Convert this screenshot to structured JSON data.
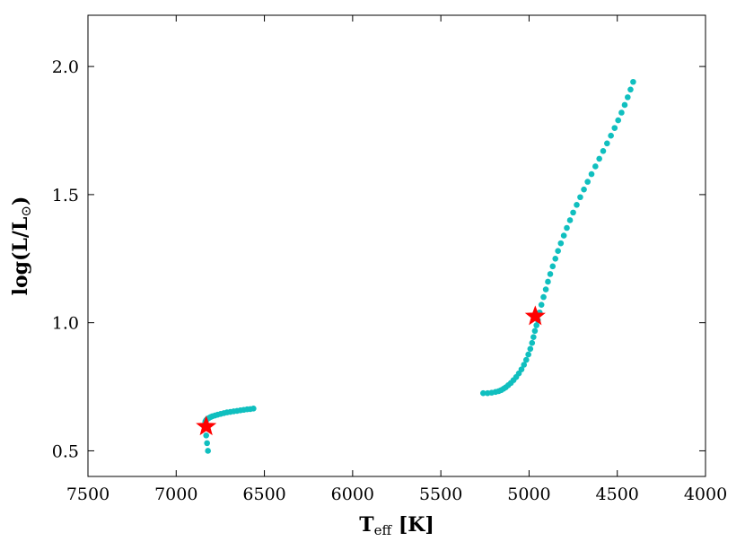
{
  "chart_data": {
    "type": "scatter",
    "title": "",
    "xlabel": {
      "main": "T",
      "sub": "eff",
      "rest": " [K]"
    },
    "ylabel": {
      "main": "log(L/L",
      "sub": "⊙",
      "rest": ")"
    },
    "xlim": [
      7500,
      4000
    ],
    "ylim": [
      0.4,
      2.2
    ],
    "x_ticks": [
      7500,
      7000,
      6500,
      6000,
      5500,
      5000,
      4500,
      4000
    ],
    "y_ticks": [
      0.5,
      1.0,
      1.5,
      2.0
    ],
    "x_tick_labels": [
      "7500",
      "7000",
      "6500",
      "6000",
      "5500",
      "5000",
      "4500",
      "4000"
    ],
    "y_tick_labels": [
      "0.5",
      "1.0",
      "1.5",
      "2.0"
    ],
    "grid": false,
    "colors": {
      "track": "#10bfbf",
      "marker": "#ff0000"
    },
    "series": [
      {
        "marker": "circle",
        "x": [
          6820,
          6825,
          6830,
          6833,
          6835,
          6834,
          6830,
          6824,
          6815,
          6805,
          6795,
          6780,
          6765,
          6748,
          6730,
          6712,
          6693,
          6674,
          6655,
          6636,
          6617,
          6598,
          6580,
          6562,
          5260,
          5235,
          5212,
          5190,
          5172,
          5158,
          5145,
          5132,
          5118,
          5103,
          5088,
          5073,
          5058,
          5043,
          5029,
          5016,
          5004,
          4993,
          4983,
          4975,
          4967,
          4958,
          4950,
          4940,
          4930,
          4918,
          4905,
          4893,
          4880,
          4866,
          4851,
          4836,
          4820,
          4803,
          4786,
          4768,
          4750,
          4730,
          4710,
          4689,
          4668,
          4646,
          4624,
          4602,
          4580,
          4558,
          4536,
          4515,
          4495,
          4476,
          4458,
          4441,
          4425,
          4410
        ],
        "y": [
          0.5,
          0.53,
          0.56,
          0.59,
          0.61,
          0.615,
          0.62,
          0.624,
          0.628,
          0.632,
          0.635,
          0.638,
          0.641,
          0.644,
          0.647,
          0.65,
          0.652,
          0.654,
          0.656,
          0.658,
          0.66,
          0.662,
          0.663,
          0.665,
          0.725,
          0.725,
          0.727,
          0.73,
          0.733,
          0.737,
          0.742,
          0.748,
          0.756,
          0.765,
          0.776,
          0.788,
          0.802,
          0.818,
          0.836,
          0.855,
          0.876,
          0.898,
          0.921,
          0.944,
          0.968,
          0.99,
          1.01,
          1.04,
          1.07,
          1.1,
          1.13,
          1.16,
          1.19,
          1.22,
          1.25,
          1.28,
          1.31,
          1.34,
          1.37,
          1.4,
          1.43,
          1.46,
          1.49,
          1.52,
          1.55,
          1.58,
          1.61,
          1.64,
          1.67,
          1.7,
          1.73,
          1.76,
          1.79,
          1.82,
          1.85,
          1.88,
          1.91,
          1.94
        ]
      },
      {
        "marker": "star",
        "x": [
          6830,
          4965
        ],
        "y": [
          0.595,
          1.025
        ]
      }
    ]
  }
}
